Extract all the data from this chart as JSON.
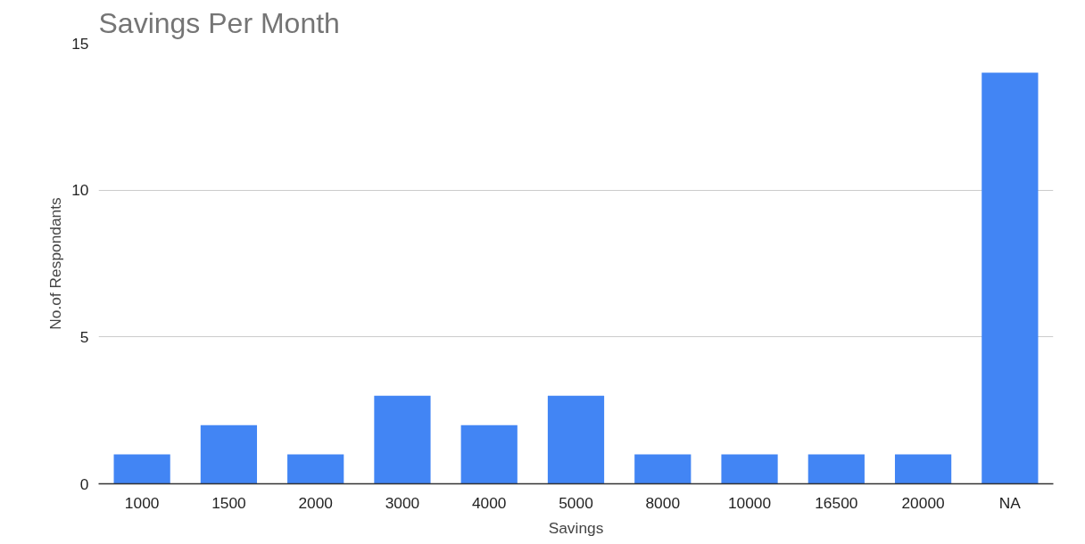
{
  "chart_data": {
    "type": "bar",
    "title": "Savings Per Month",
    "xlabel": "Savings",
    "ylabel": "No.of Respondants",
    "categories": [
      "1000",
      "1500",
      "2000",
      "3000",
      "4000",
      "5000",
      "8000",
      "10000",
      "16500",
      "20000",
      "NA"
    ],
    "series": [
      {
        "color": "#4285f4",
        "values": [
          1,
          2,
          1,
          3,
          2,
          3,
          1,
          1,
          1,
          1,
          14
        ]
      }
    ],
    "ylim": [
      0,
      15
    ],
    "yticks": [
      0,
      5,
      10,
      15
    ],
    "grid": "y"
  }
}
